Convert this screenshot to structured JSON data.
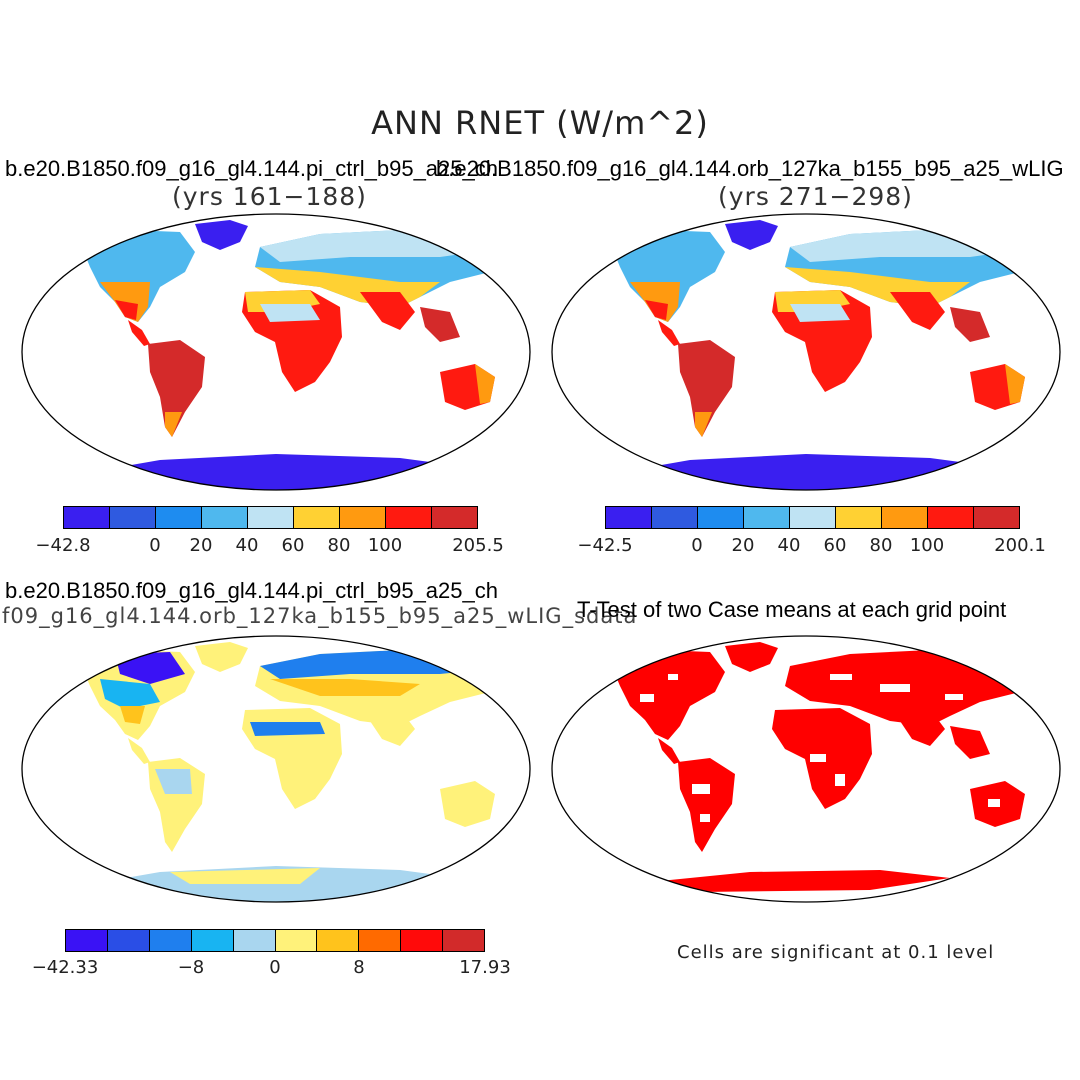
{
  "main_title": "ANN RNET (W/m^2)",
  "panels": [
    {
      "title": "b.e20.B1850.f09_g16_gl4.144.pi_ctrl_b95_a25_ch",
      "subtitle": "(yrs 161−188)",
      "colorbar": {
        "colors": [
          "#3a1ff0",
          "#2f5ae0",
          "#1e8cf0",
          "#4fb8ee",
          "#bfe3f3",
          "#ffd133",
          "#ff9a10",
          "#ff1a10",
          "#d42a2a"
        ],
        "ticks": [
          "−42.8",
          "0",
          "20",
          "40",
          "60",
          "80",
          "100",
          "205.5"
        ]
      }
    },
    {
      "title": "b.e20.B1850.f09_g16_gl4.144.orb_127ka_b155_b95_a25_wLIG",
      "subtitle": "(yrs 271−298)",
      "colorbar": {
        "colors": [
          "#3a1ff0",
          "#2f5ae0",
          "#1e8cf0",
          "#4fb8ee",
          "#bfe3f3",
          "#ffd133",
          "#ff9a10",
          "#ff1a10",
          "#d42a2a"
        ],
        "ticks": [
          "−42.5",
          "0",
          "20",
          "40",
          "60",
          "80",
          "100",
          "200.1"
        ]
      }
    },
    {
      "title": "b.e20.B1850.f09_g16_gl4.144.pi_ctrl_b95_a25_ch",
      "subtitle": "f09_g16_gl4.144.orb_127ka_b155_b95_a25_wLIG_sdata",
      "colorbar": {
        "colors": [
          "#3a12f5",
          "#2a4ee6",
          "#1f7fee",
          "#18b4f2",
          "#a9d6ef",
          "#fff27a",
          "#ffc31c",
          "#ff6a00",
          "#ff0a0a",
          "#d22a2a"
        ],
        "ticks": [
          "−42.33",
          "−8",
          "0",
          "8",
          "17.93"
        ]
      }
    },
    {
      "title": "T-Test of two Case means at each grid point",
      "note": "Cells are significant at 0.1 level",
      "fill_color": "#ff0000"
    }
  ]
}
